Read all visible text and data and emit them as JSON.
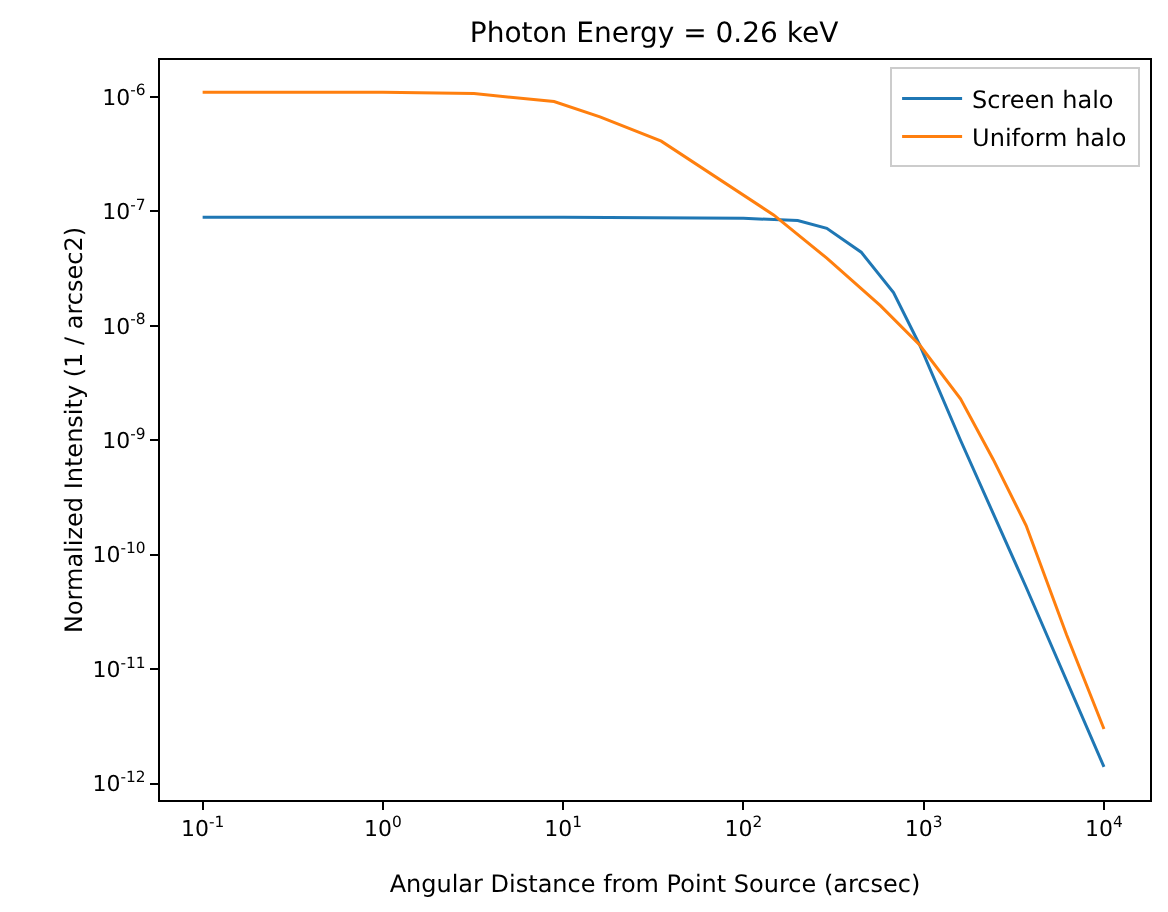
{
  "chart_data": {
    "type": "line",
    "title": "Photon Energy = 0.26 keV",
    "xlabel": "Angular Distance from Point Source (arcsec)",
    "ylabel": "Normalized Intensity (1 / arcsec2)",
    "log": "xy",
    "grid": false,
    "legend": "top right",
    "marker": "none",
    "line_style": "solid",
    "xlim": [
      0.058,
      18000
    ],
    "ylim": [
      7.2e-13,
      2.1e-06
    ],
    "xticks": [
      {
        "value": 0.1,
        "label": "10$^{-1}$"
      },
      {
        "value": 1,
        "label": "10$^{0}$"
      },
      {
        "value": 10,
        "label": "10$^{1}$"
      },
      {
        "value": 100,
        "label": "10$^{2}$"
      },
      {
        "value": 1000,
        "label": "10$^{3}$"
      },
      {
        "value": 10000,
        "label": "10$^{4}$"
      }
    ],
    "yticks": [
      {
        "value": 1e-12,
        "label": "10$^{-12}$"
      },
      {
        "value": 1e-11,
        "label": "10$^{-11}$"
      },
      {
        "value": 1e-10,
        "label": "10$^{-10}$"
      },
      {
        "value": 1e-09,
        "label": "10$^{-9}$"
      },
      {
        "value": 1e-08,
        "label": "10$^{-8}$"
      },
      {
        "value": 1e-07,
        "label": "10$^{-7}$"
      },
      {
        "value": 1e-06,
        "label": "10$^{-6}$"
      }
    ],
    "series": [
      {
        "name": "Screen halo",
        "color": "#1f77b4",
        "x": [
          0.1,
          1,
          10,
          100,
          200,
          290,
          450,
          680,
          950,
          1600,
          3700,
          10000
        ],
        "values": [
          8.9e-08,
          8.9e-08,
          8.9e-08,
          8.7e-08,
          8.3e-08,
          7.1e-08,
          4.4e-08,
          1.95e-08,
          6.8e-09,
          1e-09,
          5.2e-11,
          1.4e-12
        ]
      },
      {
        "name": "Uniform halo",
        "color": "#ff7f0e",
        "x": [
          0.1,
          1,
          3.2,
          8.9,
          16,
          35,
          147,
          290,
          575,
          950,
          1600,
          2430,
          3700,
          6200,
          10000
        ],
        "values": [
          1.1e-06,
          1.1e-06,
          1.07e-06,
          9.1e-07,
          6.7e-07,
          4.1e-07,
          9.3e-08,
          3.9e-08,
          1.5e-08,
          6.8e-09,
          2.3e-09,
          6.8e-10,
          1.8e-10,
          2e-11,
          3e-12
        ]
      }
    ]
  }
}
